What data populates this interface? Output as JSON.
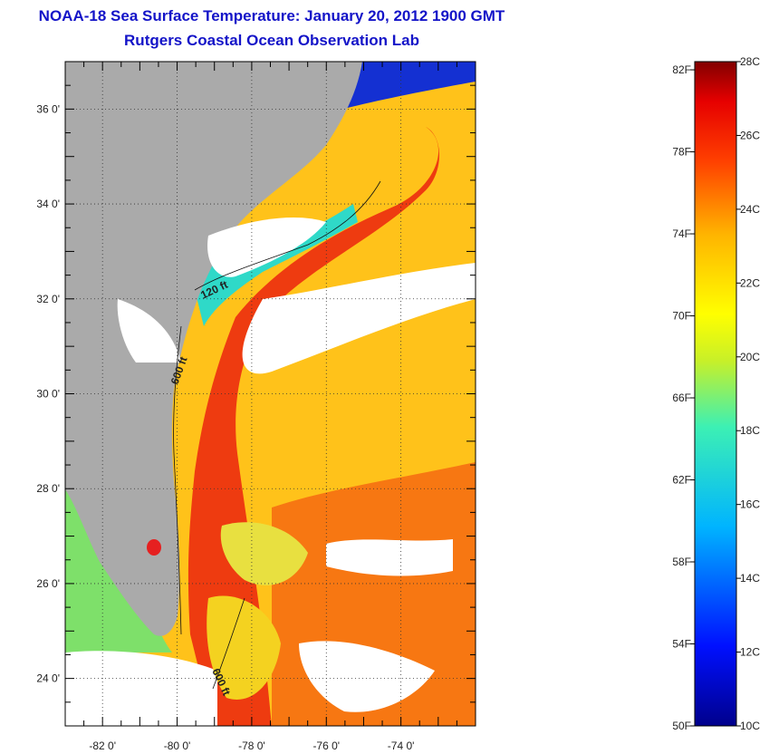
{
  "title": {
    "line1": "NOAA-18 Sea Surface Temperature:  January 20, 2012 1900 GMT",
    "line2": "Rutgers Coastal Ocean Observation Lab"
  },
  "map": {
    "lon_range": [
      -83,
      -72
    ],
    "lat_range": [
      23,
      37
    ],
    "lat_ticks": [
      "36 0'",
      "34 0'",
      "32 0'",
      "30 0'",
      "28 0'",
      "26 0'",
      "24 0'"
    ],
    "lon_ticks": [
      "-82 0'",
      "-80 0'",
      "-78 0'",
      "-76 0'",
      "-74 0'"
    ],
    "isobath_labels": [
      "120 ft",
      "600 ft",
      "600 ft"
    ],
    "colors": {
      "land": "#aaaaaa",
      "cloud": "#ffffff"
    }
  },
  "colorbar": {
    "f_labels": [
      "82F",
      "78F",
      "74F",
      "70F",
      "66F",
      "62F",
      "58F",
      "54F",
      "50F"
    ],
    "c_labels": [
      "28C",
      "26C",
      "24C",
      "22C",
      "20C",
      "18C",
      "16C",
      "14C",
      "12C",
      "10C"
    ],
    "range_c": [
      10,
      28
    ]
  }
}
